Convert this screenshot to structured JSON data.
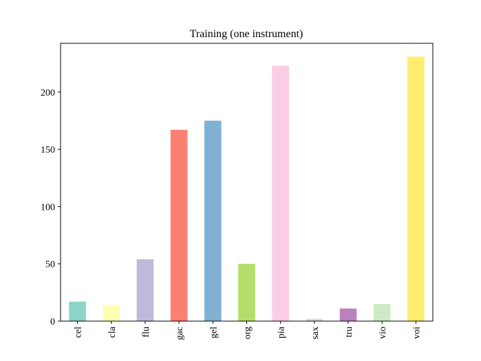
{
  "chart_data": {
    "type": "bar",
    "title": "Training (one instrument)",
    "categories": [
      "cel",
      "cla",
      "flu",
      "gac",
      "gel",
      "org",
      "pia",
      "sax",
      "tru",
      "vio",
      "voi"
    ],
    "values": [
      17,
      14,
      54,
      167,
      175,
      50,
      223,
      2,
      11,
      15,
      231
    ],
    "colors": [
      "#8dd3c7",
      "#ffffb3",
      "#bebada",
      "#fb8072",
      "#80b1d3",
      "#b3de69",
      "#fccde5",
      "#d9d9d9",
      "#bc80bd",
      "#ccebc5",
      "#ffed6f"
    ],
    "ylim": [
      0,
      242.55
    ],
    "yticks": [
      0,
      50,
      100,
      150,
      200
    ],
    "grid": false
  }
}
